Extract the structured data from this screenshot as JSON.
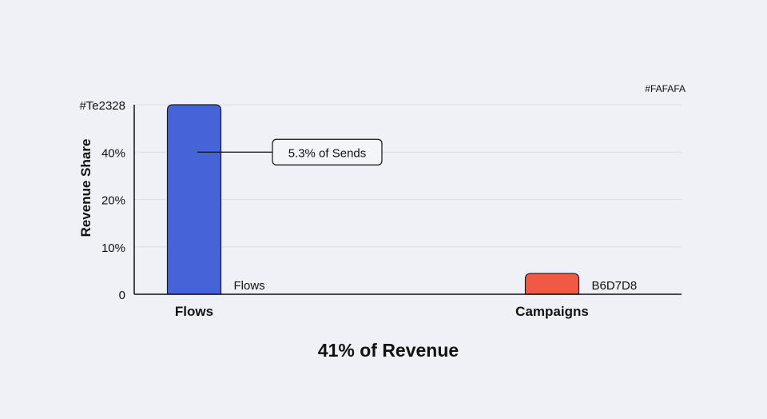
{
  "chart_data": {
    "type": "bar",
    "title": "41% of Revenue",
    "ylabel": "Revenue Share",
    "xlabel": "",
    "y_ticks": [
      "0",
      "10%",
      "20%",
      "40%",
      "#Te2328"
    ],
    "ylim": [
      0,
      4
    ],
    "grid": true,
    "categories": [
      "Flows",
      "Campaigns"
    ],
    "values": [
      4,
      0.44
    ],
    "bar_colors": [
      "#4763d8",
      "#f05a45"
    ],
    "bar_labels": [
      "Flows",
      "B6D7D8"
    ],
    "annotation": {
      "text": "5.3% of Sends",
      "target": "Flows",
      "at_tick_value": 3
    },
    "corner_note": "#FAFAFA"
  }
}
